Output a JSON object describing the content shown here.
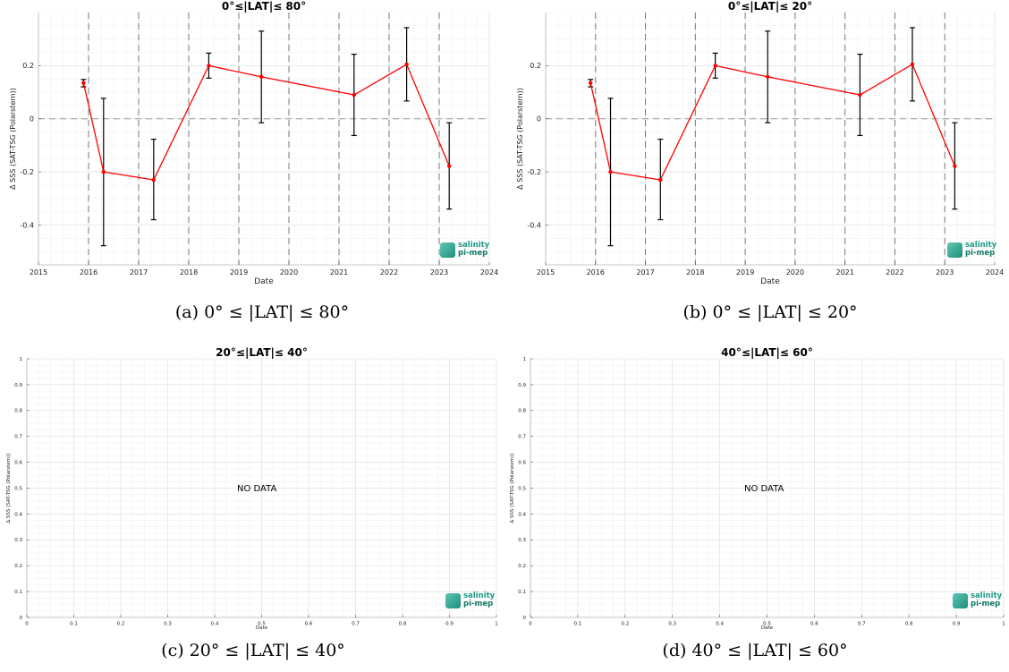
{
  "chart_data": [
    {
      "panel": "a",
      "type": "line",
      "title_prefix": "0°≤",
      "title_bold": "|LAT|",
      "title_suffix": "≤ 80°",
      "xlabel": "Date",
      "ylabel": "Δ SSS (SAT-TSG (Polarstern))",
      "xlim": [
        2015,
        2024
      ],
      "ylim": [
        -0.55,
        0.4
      ],
      "xticks": [
        "2015",
        "2016",
        "2017",
        "2018",
        "2019",
        "2020",
        "2021",
        "2022",
        "2023",
        "2024"
      ],
      "yticks": [
        "-0.4",
        "-0.2",
        "0",
        "0.2"
      ],
      "ytick_values": [
        -0.4,
        -0.2,
        0,
        0.2
      ],
      "vlines": [
        2016,
        2017,
        2018,
        2019,
        2020,
        2021,
        2022,
        2023
      ],
      "hline": 0,
      "grid": true,
      "line_color": "#ff0000",
      "errorbar_color": "#000000",
      "x": [
        "2015.9",
        "2016.3",
        "2017.3",
        "2018.4",
        "2019.45",
        "2021.3",
        "2022.35",
        "2023.2"
      ],
      "y": [
        0.135,
        -0.2,
        -0.23,
        0.2,
        0.158,
        0.09,
        0.205,
        -0.178
      ],
      "ylow": [
        0.12,
        -0.478,
        -0.38,
        0.153,
        -0.015,
        -0.063,
        0.067,
        -0.34
      ],
      "yhigh": [
        0.148,
        0.077,
        -0.077,
        0.247,
        0.33,
        0.243,
        0.343,
        -0.015
      ],
      "caption": "(a) 0° ≤ |LAT| ≤ 80°",
      "logo": {
        "line1": "salinity",
        "line2": "pi-mep"
      }
    },
    {
      "panel": "b",
      "type": "line",
      "title_prefix": "0°≤",
      "title_bold": "|LAT|",
      "title_suffix": "≤ 20°",
      "xlabel": "Date",
      "ylabel": "Δ SSS (SAT-TSG (Polarstern))",
      "xlim": [
        2015,
        2024
      ],
      "ylim": [
        -0.55,
        0.4
      ],
      "xticks": [
        "2015",
        "2016",
        "2017",
        "2018",
        "2019",
        "2020",
        "2021",
        "2022",
        "2023",
        "2024"
      ],
      "yticks": [
        "-0.4",
        "-0.2",
        "0",
        "0.2"
      ],
      "ytick_values": [
        -0.4,
        -0.2,
        0,
        0.2
      ],
      "vlines": [
        2016,
        2017,
        2018,
        2019,
        2020,
        2021,
        2022,
        2023
      ],
      "hline": 0,
      "grid": true,
      "line_color": "#ff0000",
      "errorbar_color": "#000000",
      "x": [
        "2015.9",
        "2016.3",
        "2017.3",
        "2018.4",
        "2019.45",
        "2021.3",
        "2022.35",
        "2023.2"
      ],
      "y": [
        0.135,
        -0.2,
        -0.23,
        0.2,
        0.158,
        0.09,
        0.205,
        -0.178
      ],
      "ylow": [
        0.12,
        -0.478,
        -0.38,
        0.153,
        -0.015,
        -0.063,
        0.067,
        -0.34
      ],
      "yhigh": [
        0.148,
        0.077,
        -0.077,
        0.247,
        0.33,
        0.243,
        0.343,
        -0.015
      ],
      "caption": "(b) 0° ≤ |LAT| ≤ 20°",
      "logo": {
        "line1": "salinity",
        "line2": "pi-mep"
      }
    },
    {
      "panel": "c",
      "type": "line",
      "title_prefix": "20°≤",
      "title_bold": "|LAT|",
      "title_suffix": "≤ 40°",
      "xlabel": "Date",
      "ylabel": "Δ SSS (SAT-TSG (Polarstern))",
      "xlim": [
        0,
        1
      ],
      "ylim": [
        0,
        1
      ],
      "xticks": [
        "0",
        "0.1",
        "0.2",
        "0.3",
        "0.4",
        "0.5",
        "0.6",
        "0.7",
        "0.8",
        "0.9",
        "1"
      ],
      "yticks": [
        "0",
        "0.1",
        "0.2",
        "0.3",
        "0.4",
        "0.5",
        "0.6",
        "0.7",
        "0.8",
        "0.9",
        "1"
      ],
      "grid": true,
      "empty_text": "NO DATA",
      "caption": "(c) 20° ≤ |LAT| ≤ 40°",
      "logo": {
        "line1": "salinity",
        "line2": "pi-mep"
      }
    },
    {
      "panel": "d",
      "type": "line",
      "title_prefix": "40°≤",
      "title_bold": "|LAT|",
      "title_suffix": "≤ 60°",
      "xlabel": "Date",
      "ylabel": "Δ SSS (SAT-TSG (Polarstern))",
      "xlim": [
        0,
        1
      ],
      "ylim": [
        0,
        1
      ],
      "xticks": [
        "0",
        "0.1",
        "0.2",
        "0.3",
        "0.4",
        "0.5",
        "0.6",
        "0.7",
        "0.8",
        "0.9",
        "1"
      ],
      "yticks": [
        "0",
        "0.1",
        "0.2",
        "0.3",
        "0.4",
        "0.5",
        "0.6",
        "0.7",
        "0.8",
        "0.9",
        "1"
      ],
      "grid": true,
      "empty_text": "NO DATA",
      "caption": "(d) 40° ≤ |LAT| ≤ 60°",
      "logo": {
        "line1": "salinity",
        "line2": "pi-mep"
      }
    }
  ]
}
